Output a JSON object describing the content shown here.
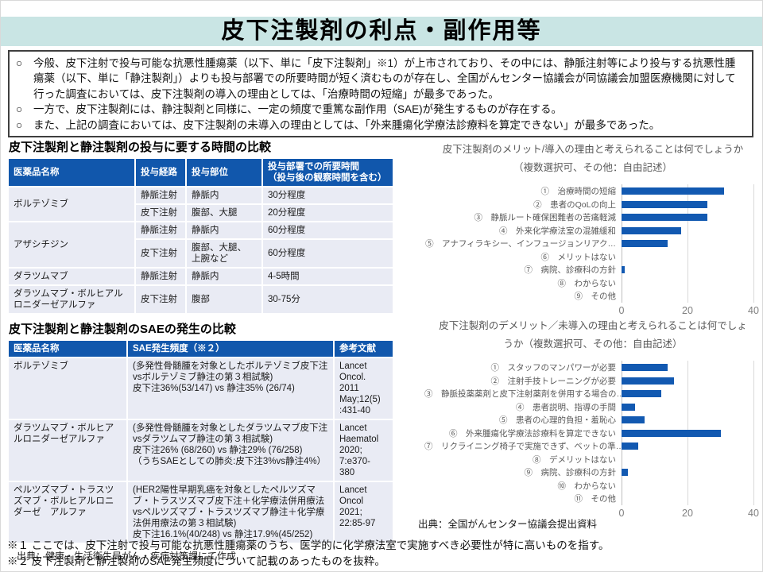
{
  "slide": {
    "title": "皮下注製剤の利点・副作用等"
  },
  "intro": {
    "bullets": [
      {
        "marker": "○",
        "text": "今般、皮下注射で投与可能な抗悪性腫瘍薬（以下、単に「皮下注製剤」※1）が上市されており、その中には、静脈注射等により投与する抗悪性腫瘍薬（以下、単に「静注製剤」）よりも投与部署での所要時間が短く済むものが存在し、全国がんセンター協議会が同協議会加盟医療機関に対して行った調査においては、皮下注製剤の導入の理由としては、「治療時間の短縮」が最多であった。"
      },
      {
        "marker": "○",
        "text": "一方で、皮下注製剤には、静注製剤と同様に、一定の頻度で重篤な副作用（SAE)が発生するものが存在する。"
      },
      {
        "marker": "○",
        "text": "また、上記の調査においては、皮下注製剤の未導入の理由としては、「外来腫瘍化学療法診療料を算定できない」が最多であった。"
      }
    ]
  },
  "time_table": {
    "heading": "皮下注製剤と静注製剤の投与に要する時間の比較",
    "columns": [
      "医薬品名称",
      "投与経路",
      "投与部位",
      "投与部署での所要時間\n（投与後の観察時間を含む）"
    ],
    "rows": [
      {
        "drug": "ボルテゾミブ",
        "route": "静脈注射",
        "site": "静脈内",
        "time": "30分程度"
      },
      {
        "route": "皮下注射",
        "site": "腹部、大腿",
        "time": "20分程度"
      },
      {
        "drug": "アザシチジン",
        "route": "静脈注射",
        "site": "静脈内",
        "time": "60分程度"
      },
      {
        "route": "皮下注射",
        "site": "腹部、大腿、\n上腕など",
        "time": "60分程度"
      },
      {
        "drug": "ダラツムマブ",
        "route": "静脈注射",
        "site": "静脈内",
        "time": "4-5時間"
      },
      {
        "drug": "ダラツムマブ・ボルヒアルロニダーゼアルファ",
        "route": "皮下注射",
        "site": "腹部",
        "time": "30-75分"
      }
    ]
  },
  "sae_table": {
    "heading": "皮下注製剤と静注製剤のSAEの発生の比較",
    "columns": [
      "医薬品名称",
      "SAE発生頻度（※２）",
      "参考文献"
    ],
    "rows": [
      {
        "drug": "ボルテゾミブ",
        "sae": "(多発性骨髄腫を対象としたボルテゾミブ皮下注vsボルテゾミブ静注の第３相試験)\n皮下注36%(53/147) vs 静注35% (26/74)",
        "ref": "Lancet\nOncol.\n2011\nMay;12(5)\n:431-40"
      },
      {
        "drug": "ダラツムマブ・ボルヒアルロニダーゼアルファ",
        "sae": "(多発性骨髄腫を対象としたダラツムマブ皮下注vsダラツムマブ静注の第３相試験)\n皮下注26% (68/260) vs 静注29% (76/258)\n（うちSAEとしての肺炎:皮下注3%vs静注4%）",
        "ref": "Lancet\nHaematol\n2020;\n7:e370-\n380"
      },
      {
        "drug": "ペルツズマブ・トラスツズマブ・ボルヒアルロニダーゼ　アルファ",
        "sae": "(HER2陽性早期乳癌を対象としたペルツズマブ・トラスツズマブ皮下注＋化学療法併用療法vsペルツズマブ・トラスツズマブ静注＋化学療法併用療法の第３相試験)\n皮下注16.1%(40/248) vs 静注17.9%(45/252)",
        "ref": "Lancet\nOncol\n2021;\n22:85-97"
      }
    ]
  },
  "sources": {
    "left": "出典：健康・生活衛生局がん・疾病対策課にて作成",
    "right": "出典：全国がんセンター協議会提出資料"
  },
  "footnotes": [
    "※１ ここでは、皮下注射で投与可能な抗悪性腫瘍薬のうち、医学的に化学療法室で実施すべき必要性が特に高いものを指す。",
    "※２ 皮下注製剤と静注製剤のSAE発生頻度について記載のあったものを抜粋。"
  ],
  "chart_data": [
    {
      "type": "bar",
      "orientation": "horizontal",
      "title": "皮下注製剤のメリット/導入の理由と考えられることは何でしょうか（複数選択可、その他：自由記述）",
      "title_lines": [
        "皮下注製剤のメリット/導入の理由と考えられることは何でしょうか",
        "（複数選択可、その他：自由記述）"
      ],
      "categories": [
        "①　治療時間の短縮",
        "②　患者のQoLの向上",
        "③　静脈ルート確保困難者の苦痛軽減",
        "④　外来化学療法室の混雑緩和",
        "⑤　アナフィラキシー、インフュージョンリアク…",
        "⑥　メリットはない",
        "⑦　病院、診療科の方針",
        "⑧　わからない",
        "⑨　その他"
      ],
      "values": [
        31,
        26,
        26,
        18,
        14,
        0,
        1,
        0,
        0
      ],
      "xlabel": "",
      "ylabel": "",
      "xlim": [
        0,
        40
      ],
      "xticks": [
        0,
        20,
        40
      ],
      "grid": true,
      "legend": false
    },
    {
      "type": "bar",
      "orientation": "horizontal",
      "title": "皮下注製剤のデメリット／未導入の理由と考えられることは何でしょうか（複数選択可、その他：自由記述）",
      "title_lines": [
        "皮下注製剤のデメリット／未導入の理由と考えられることは何でしょ",
        "うか（複数選択可、その他：自由記述）"
      ],
      "categories": [
        "①　スタッフのマンパワーが必要",
        "②　注射手技トレーニングが必要",
        "③　静脈投薬薬剤と皮下注射薬剤を併用する場合の…",
        "④　患者説明、指導の手間",
        "⑤　患者の心理的負担・羞恥心",
        "⑥　外来腫瘍化学療法診療料を算定できない",
        "⑦　リクライニング椅子で実施できず、ベットの準…",
        "⑧　デメリットはない",
        "⑨　病院、診療科の方針",
        "⑩　わからない",
        "⑪　その他"
      ],
      "values": [
        14,
        16,
        12,
        4,
        7,
        30,
        5,
        0,
        2,
        0,
        0
      ],
      "xlabel": "",
      "ylabel": "",
      "xlim": [
        0,
        40
      ],
      "xticks": [
        0,
        20,
        40
      ],
      "grid": true,
      "legend": false
    }
  ],
  "colors": {
    "title_band_bg": "#C9E5E4",
    "accent_blue": "#1157AC",
    "table_row_bg": "#E9EBF4",
    "bar_blue": "#1259B1",
    "chart_text_gray": "#595959",
    "gridline": "#D9D9D9",
    "axis_line": "#BFBFBF"
  }
}
